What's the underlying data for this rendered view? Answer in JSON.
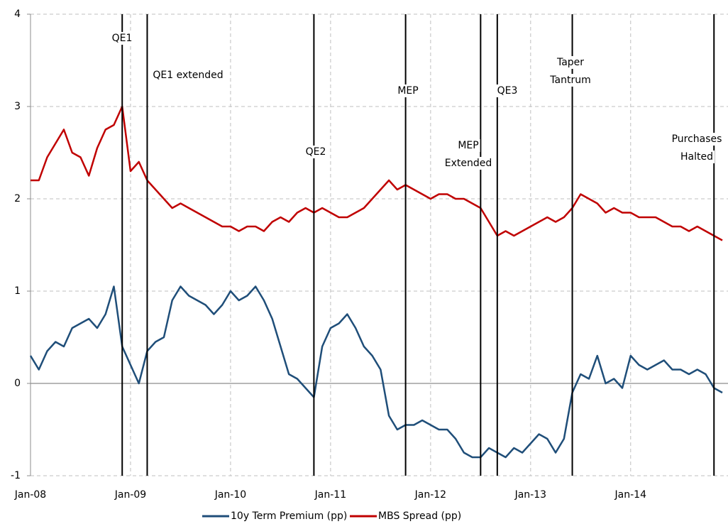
{
  "chart_data": {
    "type": "line",
    "x": [
      "2008-01",
      "2008-02",
      "2008-03",
      "2008-04",
      "2008-05",
      "2008-06",
      "2008-07",
      "2008-08",
      "2008-09",
      "2008-10",
      "2008-11",
      "2008-12",
      "2009-01",
      "2009-02",
      "2009-03",
      "2009-04",
      "2009-05",
      "2009-06",
      "2009-07",
      "2009-08",
      "2009-09",
      "2009-10",
      "2009-11",
      "2009-12",
      "2010-01",
      "2010-02",
      "2010-03",
      "2010-04",
      "2010-05",
      "2010-06",
      "2010-07",
      "2010-08",
      "2010-09",
      "2010-10",
      "2010-11",
      "2010-12",
      "2011-01",
      "2011-02",
      "2011-03",
      "2011-04",
      "2011-05",
      "2011-06",
      "2011-07",
      "2011-08",
      "2011-09",
      "2011-10",
      "2011-11",
      "2011-12",
      "2012-01",
      "2012-02",
      "2012-03",
      "2012-04",
      "2012-05",
      "2012-06",
      "2012-07",
      "2012-08",
      "2012-09",
      "2012-10",
      "2012-11",
      "2012-12",
      "2013-01",
      "2013-02",
      "2013-03",
      "2013-04",
      "2013-05",
      "2013-06",
      "2013-07",
      "2013-08",
      "2013-09",
      "2013-10",
      "2013-11",
      "2013-12",
      "2014-01",
      "2014-02",
      "2014-03",
      "2014-04",
      "2014-05",
      "2014-06",
      "2014-07",
      "2014-08",
      "2014-09",
      "2014-10",
      "2014-11",
      "2014-12"
    ],
    "series": [
      {
        "name": "10y Term Premium (pp)",
        "color": "#1f4e79",
        "values": [
          0.3,
          0.15,
          0.35,
          0.45,
          0.4,
          0.6,
          0.65,
          0.7,
          0.6,
          0.75,
          1.05,
          0.4,
          0.2,
          0.0,
          0.35,
          0.45,
          0.5,
          0.9,
          1.05,
          0.95,
          0.9,
          0.85,
          0.75,
          0.85,
          1.0,
          0.9,
          0.95,
          1.05,
          0.9,
          0.7,
          0.4,
          0.1,
          0.05,
          -0.05,
          -0.15,
          0.4,
          0.6,
          0.65,
          0.75,
          0.6,
          0.4,
          0.3,
          0.15,
          -0.35,
          -0.5,
          -0.45,
          -0.45,
          -0.4,
          -0.45,
          -0.5,
          -0.5,
          -0.6,
          -0.75,
          -0.8,
          -0.8,
          -0.7,
          -0.75,
          -0.8,
          -0.7,
          -0.75,
          -0.65,
          -0.55,
          -0.6,
          -0.75,
          -0.6,
          -0.1,
          0.1,
          0.05,
          0.3,
          0.0,
          0.05,
          -0.05,
          0.3,
          0.2,
          0.15,
          0.2,
          0.25,
          0.15,
          0.15,
          0.1,
          0.15,
          0.1,
          -0.05,
          -0.1
        ]
      },
      {
        "name": "MBS Spread (pp)",
        "color": "#c00000",
        "values": [
          2.2,
          2.2,
          2.45,
          2.6,
          2.75,
          2.5,
          2.45,
          2.25,
          2.55,
          2.75,
          2.8,
          3.0,
          2.3,
          2.4,
          2.2,
          2.1,
          2.0,
          1.9,
          1.95,
          1.9,
          1.85,
          1.8,
          1.75,
          1.7,
          1.7,
          1.65,
          1.7,
          1.7,
          1.65,
          1.75,
          1.8,
          1.75,
          1.85,
          1.9,
          1.85,
          1.9,
          1.85,
          1.8,
          1.8,
          1.85,
          1.9,
          2.0,
          2.1,
          2.2,
          2.1,
          2.15,
          2.1,
          2.05,
          2.0,
          2.05,
          2.05,
          2.0,
          2.0,
          1.95,
          1.9,
          1.75,
          1.6,
          1.65,
          1.6,
          1.65,
          1.7,
          1.75,
          1.8,
          1.75,
          1.8,
          1.9,
          2.05,
          2.0,
          1.95,
          1.85,
          1.9,
          1.85,
          1.85,
          1.8,
          1.8,
          1.8,
          1.75,
          1.7,
          1.7,
          1.65,
          1.7,
          1.65,
          1.6,
          1.55
        ]
      }
    ],
    "xlim": [
      "2008-01",
      "2014-12"
    ],
    "xticks": [
      {
        "value": "2008-01",
        "label": "Jan-08"
      },
      {
        "value": "2009-01",
        "label": "Jan-09"
      },
      {
        "value": "2010-01",
        "label": "Jan-10"
      },
      {
        "value": "2011-01",
        "label": "Jan-11"
      },
      {
        "value": "2012-01",
        "label": "Jan-12"
      },
      {
        "value": "2013-01",
        "label": "Jan-13"
      },
      {
        "value": "2014-01",
        "label": "Jan-14"
      }
    ],
    "ylim": [
      -1,
      4
    ],
    "yticks": [
      -1,
      0,
      1,
      2,
      3,
      4
    ],
    "grid": true,
    "legend": "bottom",
    "events": [
      {
        "x": "2008-12",
        "label": [
          "QE1"
        ]
      },
      {
        "x": "2009-03",
        "label": [
          "QE1 extended"
        ]
      },
      {
        "x": "2010-11",
        "label": [
          "QE2"
        ]
      },
      {
        "x": "2011-10",
        "label": [
          "MEP"
        ]
      },
      {
        "x": "2012-07",
        "label": [
          "MEP",
          "Extended"
        ]
      },
      {
        "x": "2012-09",
        "label": [
          "QE3"
        ]
      },
      {
        "x": "2013-06",
        "label": [
          "Taper",
          "Tantrum"
        ]
      },
      {
        "x": "2014-11",
        "label": [
          "Purchases",
          "Halted"
        ]
      }
    ]
  }
}
